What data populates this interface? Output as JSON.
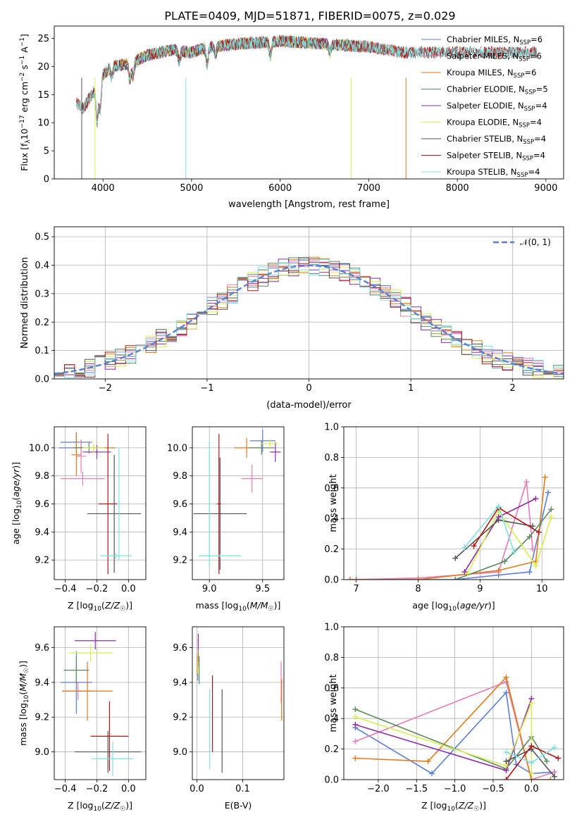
{
  "title": "PLATE=0409, MJD=51871, FIBERID=0075, z=0.029",
  "colors": {
    "Chabrier MILES": "#5a7fd6",
    "Salpeter MILES": "#e87ab8",
    "Kroupa MILES": "#e07a1a",
    "Chabrier ELODIE": "#5a8a5e",
    "Salpeter ELODIE": "#8e2aa8",
    "Kroupa ELODIE": "#d9ee50",
    "Chabrier STELIB": "#555555",
    "Salpeter STELIB": "#b31515",
    "Kroupa STELIB": "#7fe0e0"
  },
  "chart_data": [
    {
      "id": "spectrum",
      "type": "line",
      "xlabel": "wavelength [Angstrom, rest frame]",
      "ylabel": "Flux [f_λ 10^-17 erg cm^-2 s^-1 A^-1]",
      "xlim": [
        3450,
        9200
      ],
      "ylim": [
        0,
        27.2
      ],
      "xticks": [
        4000,
        5000,
        6000,
        7000,
        8000,
        9000
      ],
      "yticks": [
        0,
        5,
        10,
        15,
        20,
        25
      ],
      "legend_position": "top-right",
      "legend": [
        {
          "name": "Chabrier MILES",
          "label": "Chabrier MILES, N",
          "sub": "SSP",
          "tail": "=6"
        },
        {
          "name": "Salpeter MILES",
          "label": "Salpeter MILES, N",
          "sub": "SSP",
          "tail": "=6"
        },
        {
          "name": "Kroupa MILES",
          "label": "Kroupa MILES, N",
          "sub": "SSP",
          "tail": "=6"
        },
        {
          "name": "Chabrier ELODIE",
          "label": "Chabrier ELODIE, N",
          "sub": "SSP",
          "tail": "=5"
        },
        {
          "name": "Salpeter ELODIE",
          "label": "Salpeter ELODIE, N",
          "sub": "SSP",
          "tail": "=4"
        },
        {
          "name": "Kroupa ELODIE",
          "label": "Kroupa ELODIE, N",
          "sub": "SSP",
          "tail": "=4"
        },
        {
          "name": "Chabrier STELIB",
          "label": "Chabrier STELIB, N",
          "sub": "SSP",
          "tail": "=4"
        },
        {
          "name": "Salpeter STELIB",
          "label": "Salpeter STELIB, N",
          "sub": "SSP",
          "tail": "=4"
        },
        {
          "name": "Kroupa STELIB",
          "label": "Kroupa STELIB, N",
          "sub": "SSP",
          "tail": "=4"
        }
      ],
      "continuum": [
        [
          3700,
          13.5
        ],
        [
          3780,
          12.5
        ],
        [
          3850,
          14.5
        ],
        [
          3950,
          16.5
        ],
        [
          4000,
          18.5
        ],
        [
          4100,
          20
        ],
        [
          4300,
          20.5
        ],
        [
          4500,
          22
        ],
        [
          4800,
          23
        ],
        [
          5000,
          22.5
        ],
        [
          5200,
          23.5
        ],
        [
          5500,
          24
        ],
        [
          6000,
          24.5
        ],
        [
          6500,
          24
        ],
        [
          7000,
          23.5
        ],
        [
          7400,
          22.5
        ],
        [
          8000,
          22.5
        ],
        [
          8500,
          22.5
        ],
        [
          8900,
          22.5
        ]
      ],
      "series": [
        {
          "name": "Chabrier MILES",
          "x_range": [
            3700,
            7400
          ]
        },
        {
          "name": "Salpeter MILES",
          "x_range": [
            3700,
            7400
          ]
        },
        {
          "name": "Kroupa MILES",
          "x_range": [
            3700,
            7400
          ]
        },
        {
          "name": "Chabrier ELODIE",
          "x_range": [
            3900,
            6800
          ]
        },
        {
          "name": "Salpeter ELODIE",
          "x_range": [
            3900,
            6800
          ]
        },
        {
          "name": "Kroupa ELODIE",
          "x_range": [
            3900,
            6800
          ]
        },
        {
          "name": "Chabrier STELIB",
          "x_range": [
            3700,
            8900
          ]
        },
        {
          "name": "Salpeter STELIB",
          "x_range": [
            3700,
            8900
          ]
        },
        {
          "name": "Kroupa STELIB",
          "x_range": [
            3700,
            8900
          ]
        }
      ]
    },
    {
      "id": "residuals",
      "type": "histogram",
      "xlabel": "(data-model)/error",
      "ylabel": "Normed distribution",
      "xlim": [
        -2.5,
        2.5
      ],
      "ylim": [
        0,
        0.535
      ],
      "xticks": [
        -2,
        -1,
        0,
        1,
        2
      ],
      "yticks": [
        0.0,
        0.1,
        0.2,
        0.3,
        0.4,
        0.5
      ],
      "grid": true,
      "legend_position": "top-right",
      "legend_label": "𝒩(0, 1)",
      "bin_width": 0.1,
      "reference_curve": {
        "name": "𝒩(0, 1)",
        "mean": 0,
        "sigma": 1,
        "color": "#5a7fd6",
        "style": "dashed"
      }
    },
    {
      "id": "age_vs_Z",
      "type": "scatter",
      "xlabel": "Z [log₁₀(Z/Z☉)]",
      "ylabel": "age [log₁₀(age/yr)]",
      "xlim": [
        -0.47,
        0.11
      ],
      "ylim": [
        9.06,
        10.15
      ],
      "xticks": [
        -0.4,
        -0.2,
        0.0
      ],
      "yticks": [
        9.2,
        9.4,
        9.6,
        9.8,
        10.0
      ],
      "grid": true,
      "points": [
        {
          "name": "Chabrier MILES",
          "x": -0.33,
          "xerr": 0.1,
          "y": 10.04,
          "yerr": 0.07
        },
        {
          "name": "Chabrier MILES",
          "x": -0.3,
          "xerr": 0.14,
          "y": 10.0,
          "yerr": 0.05
        },
        {
          "name": "Salpeter MILES",
          "x": -0.29,
          "xerr": 0.14,
          "y": 9.78,
          "yerr": 0.05
        },
        {
          "name": "Salpeter MILES",
          "x": -0.3,
          "xerr": 0.03,
          "y": 9.94,
          "yerr": 0.12
        },
        {
          "name": "Kroupa MILES",
          "x": -0.22,
          "xerr": 0.14,
          "y": 10.0,
          "yerr": 0.02
        },
        {
          "name": "Kroupa MILES",
          "x": -0.33,
          "xerr": 0.03,
          "y": 9.95,
          "yerr": 0.15
        },
        {
          "name": "Chabrier ELODIE",
          "x": -0.25,
          "xerr": 0.1,
          "y": 10.0,
          "yerr": 0.04
        },
        {
          "name": "Salpeter ELODIE",
          "x": -0.2,
          "xerr": 0.09,
          "y": 9.97,
          "yerr": 0.05
        },
        {
          "name": "Kroupa ELODIE",
          "x": -0.22,
          "xerr": 0.07,
          "y": 10.0,
          "yerr": 0.03
        },
        {
          "name": "Chabrier STELIB",
          "x": -0.09,
          "xerr": 0.17,
          "y": 9.53,
          "yerr": 0.42
        },
        {
          "name": "Salpeter STELIB",
          "x": -0.13,
          "xerr": 0.06,
          "y": 9.6,
          "yerr": 0.5
        },
        {
          "name": "Kroupa STELIB",
          "x": -0.08,
          "xerr": 0.1,
          "y": 9.23,
          "yerr": 0.02
        },
        {
          "name": "Kroupa STELIB",
          "x": -0.06,
          "xerr": 0.01,
          "y": 9.6,
          "yerr": 0.4
        }
      ]
    },
    {
      "id": "age_vs_mass",
      "type": "scatter",
      "xlabel": "mass [log₁₀(M/M☉)]",
      "ylabel": "",
      "xlim": [
        8.84,
        9.7
      ],
      "ylim": [
        9.06,
        10.15
      ],
      "xticks": [
        9.0,
        9.5
      ],
      "yticks": [
        9.2,
        9.4,
        9.6,
        9.8,
        10.0
      ],
      "grid": true,
      "points": [
        {
          "name": "Chabrier MILES",
          "x": 9.5,
          "xerr": 0.12,
          "y": 10.05,
          "yerr": 0.08
        },
        {
          "name": "Salpeter MILES",
          "x": 9.4,
          "xerr": 0.1,
          "y": 9.78,
          "yerr": 0.1
        },
        {
          "name": "Kroupa MILES",
          "x": 9.35,
          "xerr": 0.12,
          "y": 10.0,
          "yerr": 0.07
        },
        {
          "name": "Chabrier ELODIE",
          "x": 9.49,
          "xerr": 0.12,
          "y": 10.0,
          "yerr": 0.05
        },
        {
          "name": "Salpeter ELODIE",
          "x": 9.62,
          "xerr": 0.05,
          "y": 9.97,
          "yerr": 0.07
        },
        {
          "name": "Kroupa ELODIE",
          "x": 9.57,
          "xerr": 0.08,
          "y": 10.03,
          "yerr": 0.03
        },
        {
          "name": "Chabrier STELIB",
          "x": 9.1,
          "xerr": 0.25,
          "y": 9.53,
          "yerr": 0.4
        },
        {
          "name": "Salpeter STELIB",
          "x": 9.09,
          "xerr": 0.02,
          "y": 9.6,
          "yerr": 0.5
        },
        {
          "name": "Kroupa STELIB",
          "x": 9.0,
          "xerr": 0.02,
          "y": 9.6,
          "yerr": 0.45
        },
        {
          "name": "Kroupa STELIB",
          "x": 9.1,
          "xerr": 0.2,
          "y": 9.23,
          "yerr": 0.01
        }
      ]
    },
    {
      "id": "mass_weight_vs_age",
      "type": "line",
      "xlabel": "age [log₁₀(age/yr)]",
      "ylabel": "mass weight",
      "xlim": [
        6.8,
        10.35
      ],
      "ylim": [
        0,
        1.0
      ],
      "xticks": [
        7,
        8,
        9,
        10
      ],
      "yticks": [
        0.0,
        0.2,
        0.4,
        0.6,
        0.8,
        1.0
      ],
      "grid": true,
      "series": [
        {
          "name": "Chabrier MILES",
          "x": [
            7.0,
            8.6,
            9.3,
            9.8,
            10.1
          ],
          "y": [
            0.0,
            0.0,
            0.03,
            0.05,
            0.57
          ]
        },
        {
          "name": "Salpeter MILES",
          "x": [
            6.9,
            8.0,
            9.3,
            9.75,
            9.85
          ],
          "y": [
            0.0,
            0.01,
            0.05,
            0.64,
            0.2
          ]
        },
        {
          "name": "Kroupa MILES",
          "x": [
            6.9,
            8.0,
            9.3,
            9.9,
            10.05
          ],
          "y": [
            0.0,
            0.0,
            0.06,
            0.12,
            0.67
          ]
        },
        {
          "name": "Chabrier ELODIE",
          "x": [
            8.6,
            9.4,
            9.8,
            10.15
          ],
          "y": [
            0.0,
            0.12,
            0.28,
            0.46
          ]
        },
        {
          "name": "Salpeter ELODIE",
          "x": [
            8.75,
            9.3,
            9.9
          ],
          "y": [
            0.05,
            0.41,
            0.53
          ]
        },
        {
          "name": "Kroupa ELODIE",
          "x": [
            8.8,
            9.3,
            9.9,
            10.15
          ],
          "y": [
            0.04,
            0.45,
            0.09,
            0.41
          ]
        },
        {
          "name": "Chabrier STELIB",
          "x": [
            8.6,
            9.3,
            9.85
          ],
          "y": [
            0.14,
            0.39,
            0.35
          ]
        },
        {
          "name": "Salpeter STELIB",
          "x": [
            8.9,
            9.3,
            9.95
          ],
          "y": [
            0.22,
            0.47,
            0.31
          ]
        },
        {
          "name": "Kroupa STELIB",
          "x": [
            8.75,
            9.3,
            9.55
          ],
          "y": [
            0.21,
            0.48,
            0.18
          ]
        }
      ]
    },
    {
      "id": "mass_vs_Z",
      "type": "scatter",
      "xlabel": "Z [log₁₀(Z/Z☉)]",
      "ylabel": "mass [log₁₀(M/M☉)]",
      "xlim": [
        -0.47,
        0.11
      ],
      "ylim": [
        8.84,
        9.72
      ],
      "xticks": [
        -0.4,
        -0.2,
        0.0
      ],
      "yticks": [
        9.0,
        9.2,
        9.4,
        9.6
      ],
      "grid": true,
      "points": [
        {
          "name": "Chabrier MILES",
          "x": -0.33,
          "xerr": 0.1,
          "y": 9.4,
          "yerr": 0.18
        },
        {
          "name": "Salpeter MILES",
          "x": -0.32,
          "xerr": 0.1,
          "y": 9.35,
          "yerr": 0.05
        },
        {
          "name": "Kroupa MILES",
          "x": -0.26,
          "xerr": 0.16,
          "y": 9.35,
          "yerr": 0.17
        },
        {
          "name": "Chabrier ELODIE",
          "x": -0.33,
          "xerr": 0.08,
          "y": 9.47,
          "yerr": 0.08
        },
        {
          "name": "Salpeter ELODIE",
          "x": -0.21,
          "xerr": 0.13,
          "y": 9.64,
          "yerr": 0.05
        },
        {
          "name": "Kroupa ELODIE",
          "x": -0.24,
          "xerr": 0.14,
          "y": 9.57,
          "yerr": 0.05
        },
        {
          "name": "Chabrier STELIB",
          "x": -0.13,
          "xerr": 0.21,
          "y": 9.0,
          "yerr": 0.12
        },
        {
          "name": "Salpeter STELIB",
          "x": -0.12,
          "xerr": 0.12,
          "y": 9.09,
          "yerr": 0.2
        },
        {
          "name": "Kroupa STELIB",
          "x": -0.1,
          "xerr": 0.13,
          "y": 8.96,
          "yerr": 0.1
        }
      ]
    },
    {
      "id": "mass_vs_EBV",
      "type": "scatter",
      "xlabel": "E(B-V)",
      "ylabel": "",
      "xlim": [
        -0.01,
        0.19
      ],
      "ylim": [
        8.84,
        9.72
      ],
      "xticks": [
        0.0,
        0.1
      ],
      "yticks": [
        9.0,
        9.2,
        9.4,
        9.6
      ],
      "grid": true,
      "points": [
        {
          "name": "Chabrier MILES",
          "x": 0.002,
          "xerr": 0,
          "y": 9.49,
          "yerr": 0.08
        },
        {
          "name": "Salpeter MILES",
          "x": 0.003,
          "xerr": 0,
          "y": 9.57,
          "yerr": 0.08
        },
        {
          "name": "Kroupa MILES",
          "x": 0.001,
          "xerr": 0,
          "y": 9.5,
          "yerr": 0.06
        },
        {
          "name": "Chabrier ELODIE",
          "x": 0.005,
          "xerr": 0,
          "y": 9.47,
          "yerr": 0.08
        },
        {
          "name": "Salpeter ELODIE",
          "x": 0.003,
          "xerr": 0,
          "y": 9.6,
          "yerr": 0.08
        },
        {
          "name": "Kroupa ELODIE",
          "x": 0.002,
          "xerr": 0,
          "y": 9.52,
          "yerr": 0.07
        },
        {
          "name": "Chabrier STELIB",
          "x": 0.055,
          "xerr": 0,
          "y": 9.12,
          "yerr": 0.24
        },
        {
          "name": "Salpeter STELIB",
          "x": 0.034,
          "xerr": 0,
          "y": 9.22,
          "yerr": 0.22
        },
        {
          "name": "Kroupa STELIB",
          "x": 0.028,
          "xerr": 0,
          "y": 9.13,
          "yerr": 0.23
        },
        {
          "name": "Salpeter MILES",
          "x": 0.184,
          "xerr": 0,
          "y": 9.4,
          "yerr": 0.12
        },
        {
          "name": "Kroupa MILES",
          "x": 0.185,
          "xerr": 0,
          "y": 9.3,
          "yerr": 0.12
        }
      ]
    },
    {
      "id": "mass_weight_vs_Z",
      "type": "line",
      "xlabel": "Z [log₁₀(Z/Z☉)]",
      "ylabel": "mass weight",
      "xlim": [
        -2.45,
        0.42
      ],
      "ylim": [
        0,
        1.0
      ],
      "xticks": [
        -2.0,
        -1.5,
        -1.0,
        -0.5,
        0.0
      ],
      "yticks": [
        0.0,
        0.2,
        0.4,
        0.6,
        0.8,
        1.0
      ],
      "grid": true,
      "series": [
        {
          "name": "Chabrier MILES",
          "x": [
            -2.3,
            -1.3,
            -0.33,
            -0.2,
            0.0,
            0.3
          ],
          "y": [
            0.34,
            0.04,
            0.57,
            0.1,
            0.04,
            0.05
          ]
        },
        {
          "name": "Salpeter MILES",
          "x": [
            -2.3,
            -0.33,
            0.0,
            0.3
          ],
          "y": [
            0.25,
            0.64,
            0.0,
            0.05
          ]
        },
        {
          "name": "Kroupa MILES",
          "x": [
            -2.3,
            -1.35,
            -0.33,
            0.0,
            0.25
          ],
          "y": [
            0.14,
            0.12,
            0.67,
            0.0,
            0.0
          ]
        },
        {
          "name": "Chabrier ELODIE",
          "x": [
            -2.3,
            -0.33,
            0.0,
            0.2
          ],
          "y": [
            0.46,
            0.07,
            0.28,
            0.12
          ]
        },
        {
          "name": "Salpeter ELODIE",
          "x": [
            -2.3,
            -0.33,
            0.0
          ],
          "y": [
            0.36,
            0.06,
            0.53
          ]
        },
        {
          "name": "Kroupa ELODIE",
          "x": [
            -2.3,
            -0.33,
            0.0,
            0.0
          ],
          "y": [
            0.41,
            0.09,
            0.5,
            0.04
          ]
        },
        {
          "name": "Chabrier STELIB",
          "x": [
            -0.33,
            0.0,
            0.3
          ],
          "y": [
            0.12,
            0.2,
            0.02
          ]
        },
        {
          "name": "Salpeter STELIB",
          "x": [
            -0.33,
            0.0,
            0.35
          ],
          "y": [
            0.0,
            0.22,
            0.14
          ]
        },
        {
          "name": "Kroupa STELIB",
          "x": [
            -0.33,
            0.0,
            0.3
          ],
          "y": [
            0.18,
            0.11,
            0.21
          ]
        }
      ]
    }
  ]
}
